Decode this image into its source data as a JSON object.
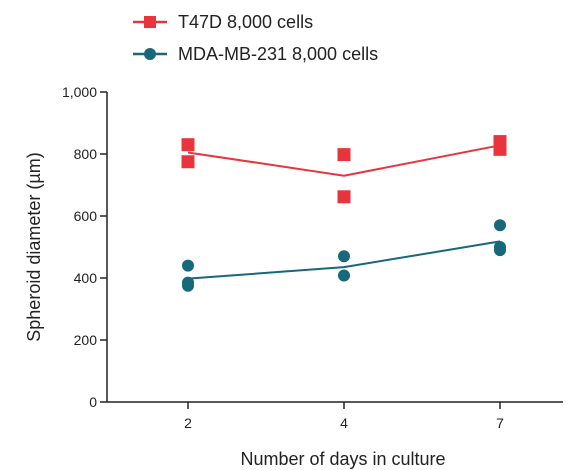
{
  "chart_data": {
    "type": "scatter",
    "xlabel": "Number of days in culture",
    "ylabel": "Spheroid diameter (µm)",
    "ylim": [
      0,
      1000
    ],
    "yticks": [
      "0",
      "200",
      "400",
      "600",
      "800",
      "1,000"
    ],
    "categories": [
      "2",
      "4",
      "7"
    ],
    "legend_placement": "top-left",
    "series": [
      {
        "name": "T47D 8,000 cells",
        "color": "#e8353d",
        "marker": "square",
        "points": [
          {
            "x": "2",
            "y": 830
          },
          {
            "x": "2",
            "y": 775
          },
          {
            "x": "4",
            "y": 798
          },
          {
            "x": "4",
            "y": 662
          },
          {
            "x": "7",
            "y": 840
          },
          {
            "x": "7",
            "y": 815
          }
        ],
        "mean_line": [
          {
            "x": "2",
            "y": 805
          },
          {
            "x": "4",
            "y": 730
          },
          {
            "x": "7",
            "y": 828
          }
        ]
      },
      {
        "name": "MDA-MB-231 8,000 cells",
        "color": "#16687a",
        "marker": "circle",
        "points": [
          {
            "x": "2",
            "y": 440
          },
          {
            "x": "2",
            "y": 385
          },
          {
            "x": "2",
            "y": 375
          },
          {
            "x": "4",
            "y": 470
          },
          {
            "x": "4",
            "y": 408
          },
          {
            "x": "7",
            "y": 570
          },
          {
            "x": "7",
            "y": 500
          },
          {
            "x": "7",
            "y": 490
          }
        ],
        "mean_line": [
          {
            "x": "2",
            "y": 398
          },
          {
            "x": "4",
            "y": 435
          },
          {
            "x": "7",
            "y": 518
          }
        ]
      }
    ]
  }
}
